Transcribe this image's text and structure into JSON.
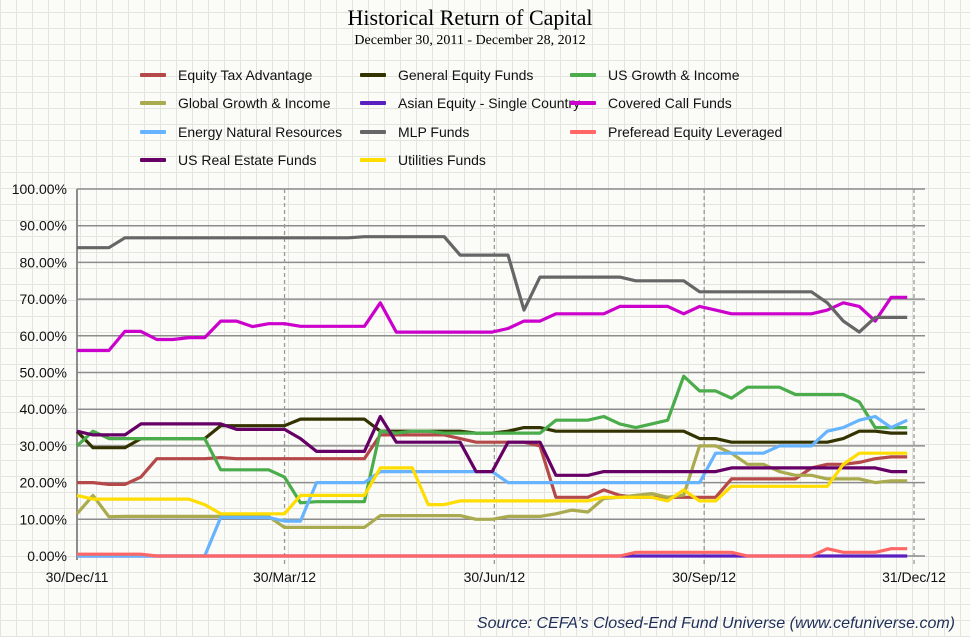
{
  "chart_data": {
    "type": "line",
    "title": "Historical Return of Capital",
    "subtitle": "December 30, 2011 - December 28, 2012",
    "xlabel": "",
    "ylabel": "",
    "ylim": [
      0,
      100
    ],
    "xlim": [
      "2011-12-30",
      "2012-12-31"
    ],
    "grid": "horizontal gridlines, dashed vertical lines at x ticks",
    "legend_position": "top",
    "y_ticks": [
      "0.00%",
      "10.00%",
      "20.00%",
      "30.00%",
      "40.00%",
      "50.00%",
      "60.00%",
      "70.00%",
      "80.00%",
      "90.00%",
      "100.00%"
    ],
    "x_ticks": [
      {
        "date": "2011-12-30",
        "label": "30/Dec/11"
      },
      {
        "date": "2012-03-30",
        "label": "30/Mar/12"
      },
      {
        "date": "2012-06-30",
        "label": "30/Jun/12"
      },
      {
        "date": "2012-09-30",
        "label": "30/Sep/12"
      },
      {
        "date": "2012-12-31",
        "label": "31/Dec/12"
      }
    ],
    "x": [
      "2011-12-30",
      "2012-01-06",
      "2012-01-13",
      "2012-01-20",
      "2012-01-27",
      "2012-02-03",
      "2012-02-10",
      "2012-02-17",
      "2012-02-24",
      "2012-03-02",
      "2012-03-09",
      "2012-03-16",
      "2012-03-23",
      "2012-03-30",
      "2012-04-06",
      "2012-04-13",
      "2012-04-20",
      "2012-04-27",
      "2012-05-04",
      "2012-05-11",
      "2012-05-18",
      "2012-05-25",
      "2012-06-01",
      "2012-06-08",
      "2012-06-15",
      "2012-06-22",
      "2012-06-29",
      "2012-07-06",
      "2012-07-13",
      "2012-07-20",
      "2012-07-27",
      "2012-08-03",
      "2012-08-10",
      "2012-08-17",
      "2012-08-24",
      "2012-08-31",
      "2012-09-07",
      "2012-09-14",
      "2012-09-21",
      "2012-09-28",
      "2012-10-05",
      "2012-10-12",
      "2012-10-19",
      "2012-10-26",
      "2012-11-02",
      "2012-11-09",
      "2012-11-16",
      "2012-11-23",
      "2012-11-30",
      "2012-12-07",
      "2012-12-14",
      "2012-12-21",
      "2012-12-28"
    ],
    "series": [
      {
        "name": "Equity Tax Advantage",
        "color": "#b5494a",
        "values": [
          20,
          20,
          19.5,
          19.5,
          21.5,
          26.5,
          26.5,
          26.5,
          26.5,
          26.8,
          26.5,
          26.5,
          26.5,
          26.5,
          26.5,
          26.5,
          26.5,
          26.5,
          26.5,
          33,
          33,
          33,
          33,
          33,
          32,
          31,
          31,
          31,
          31,
          30,
          16,
          16,
          16,
          18,
          16.5,
          16,
          16,
          16,
          16,
          16,
          16,
          21,
          21,
          21,
          21,
          21,
          24,
          25,
          25,
          25.5,
          26.5,
          27,
          27
        ]
      },
      {
        "name": "General Equity Funds",
        "color": "#333300",
        "values": [
          34,
          29.5,
          29.5,
          29.5,
          32,
          32,
          32,
          32,
          32,
          35.5,
          35.5,
          35.5,
          35.5,
          35.5,
          37.3,
          37.3,
          37.3,
          37.3,
          37.3,
          34,
          34,
          34,
          34,
          34,
          34,
          33.5,
          33.5,
          34,
          35,
          35,
          34,
          34,
          34,
          34,
          34,
          34,
          34,
          34,
          34,
          32,
          32,
          31,
          31,
          31,
          31,
          31,
          31,
          31,
          32,
          34,
          34,
          33.5,
          33.5
        ]
      },
      {
        "name": "US Growth & Income",
        "color": "#4aac4a",
        "values": [
          30,
          34,
          32,
          32,
          32,
          32,
          32,
          32,
          32,
          23.5,
          23.5,
          23.5,
          23.5,
          21.5,
          14.5,
          14.8,
          14.8,
          14.8,
          14.8,
          34,
          33.5,
          34,
          34,
          33.5,
          33.5,
          33.5,
          33.5,
          33.5,
          33.5,
          33.5,
          37,
          37,
          37,
          38,
          36,
          35,
          36,
          37,
          49,
          45,
          45,
          43,
          46,
          46,
          46,
          44,
          44,
          44,
          44,
          42,
          35,
          35,
          35
        ]
      },
      {
        "name": "Global Growth & Income",
        "color": "#aaaa4f",
        "values": [
          11.5,
          16.5,
          10.7,
          10.8,
          10.8,
          10.8,
          10.8,
          10.8,
          10.8,
          10.8,
          10.8,
          10.8,
          10.8,
          7.8,
          7.8,
          7.8,
          7.8,
          7.8,
          7.8,
          11,
          11,
          11,
          11,
          11,
          11,
          10,
          10,
          10.8,
          10.8,
          10.8,
          11.5,
          12.5,
          12,
          15.7,
          16,
          16.5,
          17,
          16,
          16.6,
          30,
          30,
          28,
          25,
          25,
          23,
          22,
          22,
          21,
          21,
          21,
          20,
          20.5,
          20.5
        ]
      },
      {
        "name": "Asian Equity - Single Country",
        "color": "#5b1fbf",
        "values": [
          0,
          0,
          0,
          0,
          0,
          0,
          0,
          0,
          0,
          0,
          0,
          0,
          0,
          0,
          0,
          0,
          0,
          0,
          0,
          0,
          0,
          0,
          0,
          0,
          0,
          0,
          0,
          0,
          0,
          0,
          0,
          0,
          0,
          0,
          0,
          0,
          0,
          0,
          0,
          0,
          0,
          0,
          0,
          0,
          0,
          0,
          0,
          0,
          0,
          0,
          0,
          0,
          0
        ]
      },
      {
        "name": "Covered Call Funds",
        "color": "#cc00cc",
        "values": [
          56,
          56,
          56,
          61.2,
          61.2,
          59,
          59,
          59.5,
          59.5,
          64,
          64,
          62.5,
          63.3,
          63.3,
          62.6,
          62.6,
          62.6,
          62.6,
          62.6,
          69,
          61,
          61,
          61,
          61,
          61,
          61,
          61,
          62,
          64,
          64,
          66,
          66,
          66,
          66,
          68,
          68,
          68,
          68,
          66,
          68,
          67,
          66,
          66,
          66,
          66,
          66,
          66,
          67,
          69,
          68,
          64,
          70.5,
          70.5
        ]
      },
      {
        "name": "Energy Natural Resources",
        "color": "#66b3ff",
        "values": [
          0,
          0,
          0,
          0,
          0,
          0,
          0,
          0,
          0,
          10.5,
          10.5,
          10.5,
          10.5,
          9.5,
          9.5,
          20,
          20,
          20,
          20,
          23,
          23,
          23,
          23,
          23,
          23,
          23,
          23,
          20,
          20,
          20,
          20,
          20,
          20,
          20,
          20,
          20,
          20,
          20,
          20,
          20,
          28,
          28,
          28,
          28,
          30,
          30,
          30,
          34,
          35,
          37,
          38,
          35,
          37
        ]
      },
      {
        "name": "MLP Funds",
        "color": "#666666",
        "values": [
          84,
          84,
          84,
          86.7,
          86.7,
          86.7,
          86.7,
          86.7,
          86.7,
          86.7,
          86.7,
          86.7,
          86.7,
          86.7,
          86.7,
          86.7,
          86.7,
          86.7,
          87,
          87,
          87,
          87,
          87,
          87,
          82,
          82,
          82,
          82,
          67,
          76,
          76,
          76,
          76,
          76,
          76,
          75,
          75,
          75,
          75,
          72,
          72,
          72,
          72,
          72,
          72,
          72,
          72,
          69,
          64,
          61,
          65,
          65,
          65
        ]
      },
      {
        "name": "Preferead Equity Leveraged",
        "color": "#ff6666",
        "values": [
          0.5,
          0.5,
          0.5,
          0.5,
          0.5,
          0,
          0,
          0,
          0,
          0,
          0,
          0,
          0,
          0,
          0,
          0,
          0,
          0,
          0,
          0,
          0,
          0,
          0,
          0,
          0,
          0,
          0,
          0,
          0,
          0,
          0,
          0,
          0,
          0,
          0,
          1,
          1,
          1,
          1,
          1,
          1,
          1,
          0,
          0,
          0,
          0,
          0,
          2,
          1,
          1,
          1,
          2,
          2
        ]
      },
      {
        "name": "US Real Estate Funds",
        "color": "#660066",
        "values": [
          34,
          33,
          33,
          33,
          36,
          36,
          36,
          36,
          36,
          36,
          34.5,
          34.5,
          34.5,
          34.5,
          32,
          28.5,
          28.5,
          28.5,
          28.5,
          38,
          31,
          31,
          31,
          31,
          31,
          23,
          23,
          31,
          31,
          31,
          22,
          22,
          22,
          23,
          23,
          23,
          23,
          23,
          23,
          23,
          23,
          24,
          24,
          24,
          24,
          24,
          24,
          24,
          24,
          24,
          24,
          23,
          23
        ]
      },
      {
        "name": "Utilities Funds",
        "color": "#ffdd00",
        "values": [
          16.5,
          15.5,
          15.5,
          15.5,
          15.5,
          15.5,
          15.5,
          15.5,
          14,
          11.5,
          11.5,
          11.5,
          11.5,
          11.5,
          16.5,
          16.5,
          16.5,
          16.5,
          16.5,
          24,
          24,
          24,
          14,
          14,
          15,
          15,
          15,
          15,
          15,
          15,
          15,
          15,
          15,
          16,
          16,
          16,
          16,
          15,
          18,
          15,
          15,
          19,
          19,
          19,
          19,
          19,
          19,
          19,
          25,
          28,
          28,
          28,
          28
        ]
      }
    ]
  },
  "source": "Source: CEFA’s Closed-End Fund Universe (www.cefuniverse.com)"
}
